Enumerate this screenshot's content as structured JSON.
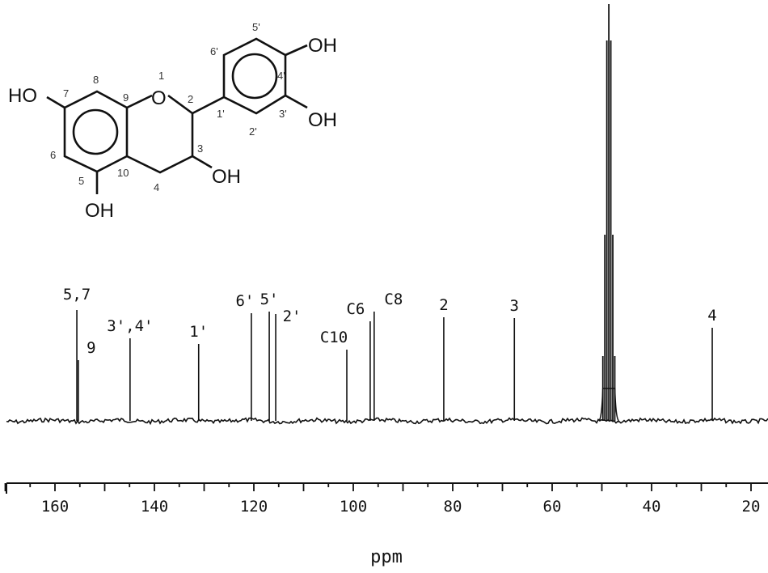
{
  "chart_data": {
    "type": "line",
    "subtype": "13C NMR spectrum",
    "title": "",
    "xlabel": "ppm",
    "ylabel": "",
    "xlim": [
      170,
      17
    ],
    "x_reversed": true,
    "x_ticks": [
      160,
      140,
      120,
      100,
      80,
      60,
      40,
      20
    ],
    "x_minor_tick_step": 5,
    "grid": false,
    "line_color": "#111111",
    "peaks": [
      {
        "label": "5,7",
        "ppm": 155.6,
        "intensity": 137
      },
      {
        "label": "9",
        "ppm": 155.3,
        "intensity": 75
      },
      {
        "label": "3',4'",
        "ppm": 144.9,
        "intensity": 102
      },
      {
        "label": "1'",
        "ppm": 131.1,
        "intensity": 95
      },
      {
        "label": "6'",
        "ppm": 120.5,
        "intensity": 133
      },
      {
        "label": "5'",
        "ppm": 116.9,
        "intensity": 135
      },
      {
        "label": "2'",
        "ppm": 115.6,
        "intensity": 132
      },
      {
        "label": "C10",
        "ppm": 101.3,
        "intensity": 88
      },
      {
        "label": "C6",
        "ppm": 96.6,
        "intensity": 123
      },
      {
        "label": "C8",
        "ppm": 95.8,
        "intensity": 135
      },
      {
        "label": "2",
        "ppm": 81.8,
        "intensity": 128
      },
      {
        "label": "3",
        "ppm": 67.6,
        "intensity": 127
      },
      {
        "label": "4",
        "ppm": 27.8,
        "intensity": 115
      }
    ],
    "solvent_multiplet": [
      {
        "ppm": 49.8,
        "intensity": 80
      },
      {
        "ppm": 49.4,
        "intensity": 230
      },
      {
        "ppm": 49.0,
        "intensity": 470
      },
      {
        "ppm": 48.6,
        "intensity": 515
      },
      {
        "ppm": 48.2,
        "intensity": 470
      },
      {
        "ppm": 47.8,
        "intensity": 230
      },
      {
        "ppm": 47.4,
        "intensity": 80
      }
    ]
  },
  "structure": {
    "atoms": {
      "o1": "O",
      "oh7": "HO",
      "oh5": "OH",
      "oh3": "OH",
      "oh4p": "OH",
      "oh3p": "OH"
    },
    "numbers": {
      "n1": "1",
      "n2": "2",
      "n3": "3",
      "n4": "4",
      "n5": "5",
      "n6": "6",
      "n7": "7",
      "n8": "8",
      "n9": "9",
      "n10": "10",
      "n1p": "1'",
      "n2p": "2'",
      "n3p": "3'",
      "n4p": "4'",
      "n5p": "5'",
      "n6p": "6'"
    }
  }
}
